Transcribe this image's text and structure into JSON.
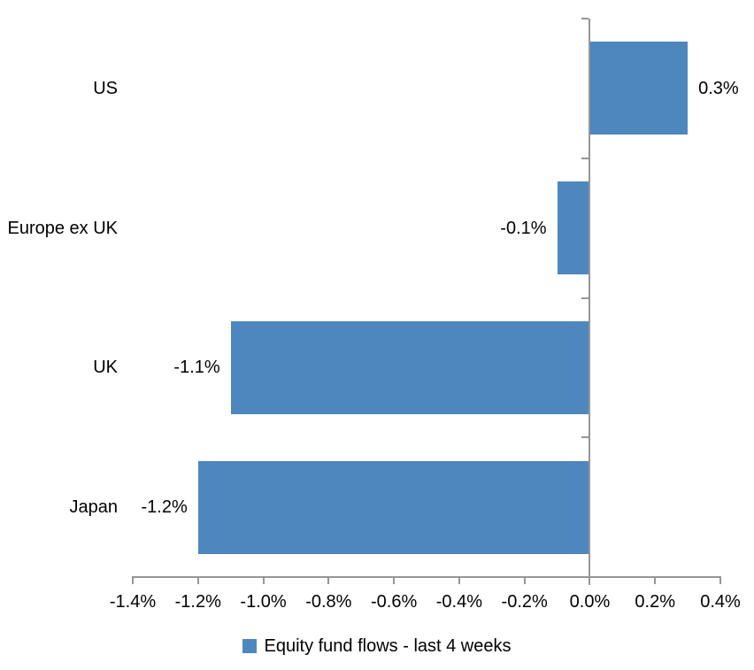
{
  "chart_data": {
    "type": "bar",
    "orientation": "horizontal",
    "title": "",
    "xlabel": "",
    "ylabel": "",
    "categories": [
      "US",
      "Europe ex UK",
      "UK",
      "Japan"
    ],
    "series": [
      {
        "name": "Equity fund flows - last 4 weeks",
        "values": [
          0.3,
          -0.1,
          -1.1,
          -1.2
        ],
        "data_labels": [
          "0.3%",
          "-0.1%",
          "-1.1%",
          "-1.2%"
        ]
      }
    ],
    "xlim": [
      -1.4,
      0.4
    ],
    "xtick_step": 0.2,
    "xtick_labels": [
      "-1.4%",
      "-1.2%",
      "-1.0%",
      "-0.8%",
      "-0.6%",
      "-0.4%",
      "-0.2%",
      "0.0%",
      "0.2%",
      "0.4%"
    ],
    "grid": false,
    "legend": "Equity fund flows - last 4 weeks",
    "legend_position": "bottom",
    "bar_color": "#4e87be",
    "axis_color": "#969696",
    "text_color": "#000000",
    "background_color": "#ffffff"
  }
}
